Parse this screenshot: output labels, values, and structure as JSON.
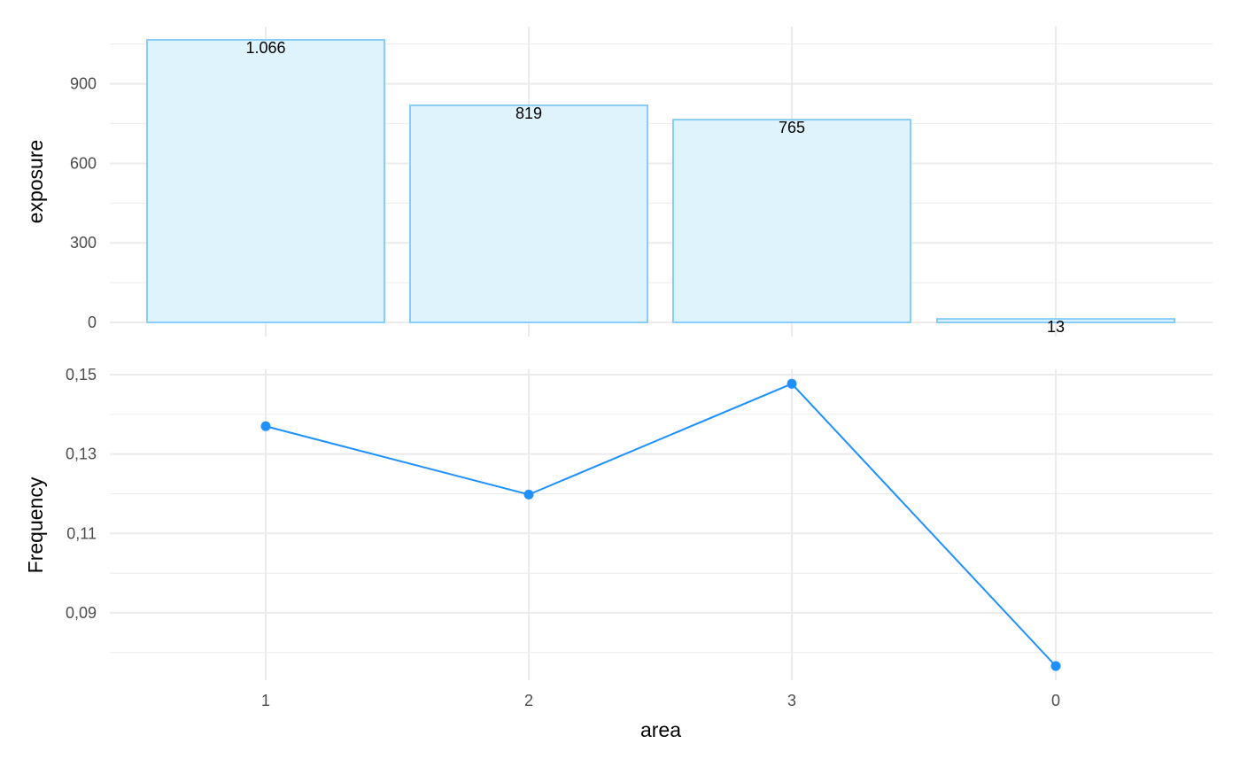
{
  "chart_data": [
    {
      "type": "bar",
      "categories": [
        "1",
        "2",
        "3",
        "0"
      ],
      "values": [
        1066,
        819,
        765,
        13
      ],
      "value_labels": [
        "1.066",
        "819",
        "765",
        "13"
      ],
      "xlabel": "",
      "ylabel": "exposure",
      "yticks": [
        0,
        300,
        600,
        900
      ],
      "ytick_labels": [
        "0",
        "300",
        "600",
        "900"
      ],
      "ylim": [
        0,
        1066
      ],
      "grid": true,
      "colors": {
        "fill": "#dff3fd",
        "stroke": "#87cdf5",
        "grid": "#ebebeb"
      }
    },
    {
      "type": "line",
      "categories": [
        "1",
        "2",
        "3",
        "0"
      ],
      "values": [
        0.137,
        0.1198,
        0.1477,
        0.0766
      ],
      "xlabel": "area",
      "ylabel": "Frequency",
      "yticks": [
        0.09,
        0.11,
        0.13,
        0.15
      ],
      "ytick_labels": [
        "0,09",
        "0,11",
        "0,13",
        "0,15"
      ],
      "ylim": [
        0.0766,
        0.15
      ],
      "grid": true,
      "colors": {
        "line": "#1e90ff",
        "point": "#1e90ff",
        "grid": "#ebebeb"
      }
    }
  ]
}
